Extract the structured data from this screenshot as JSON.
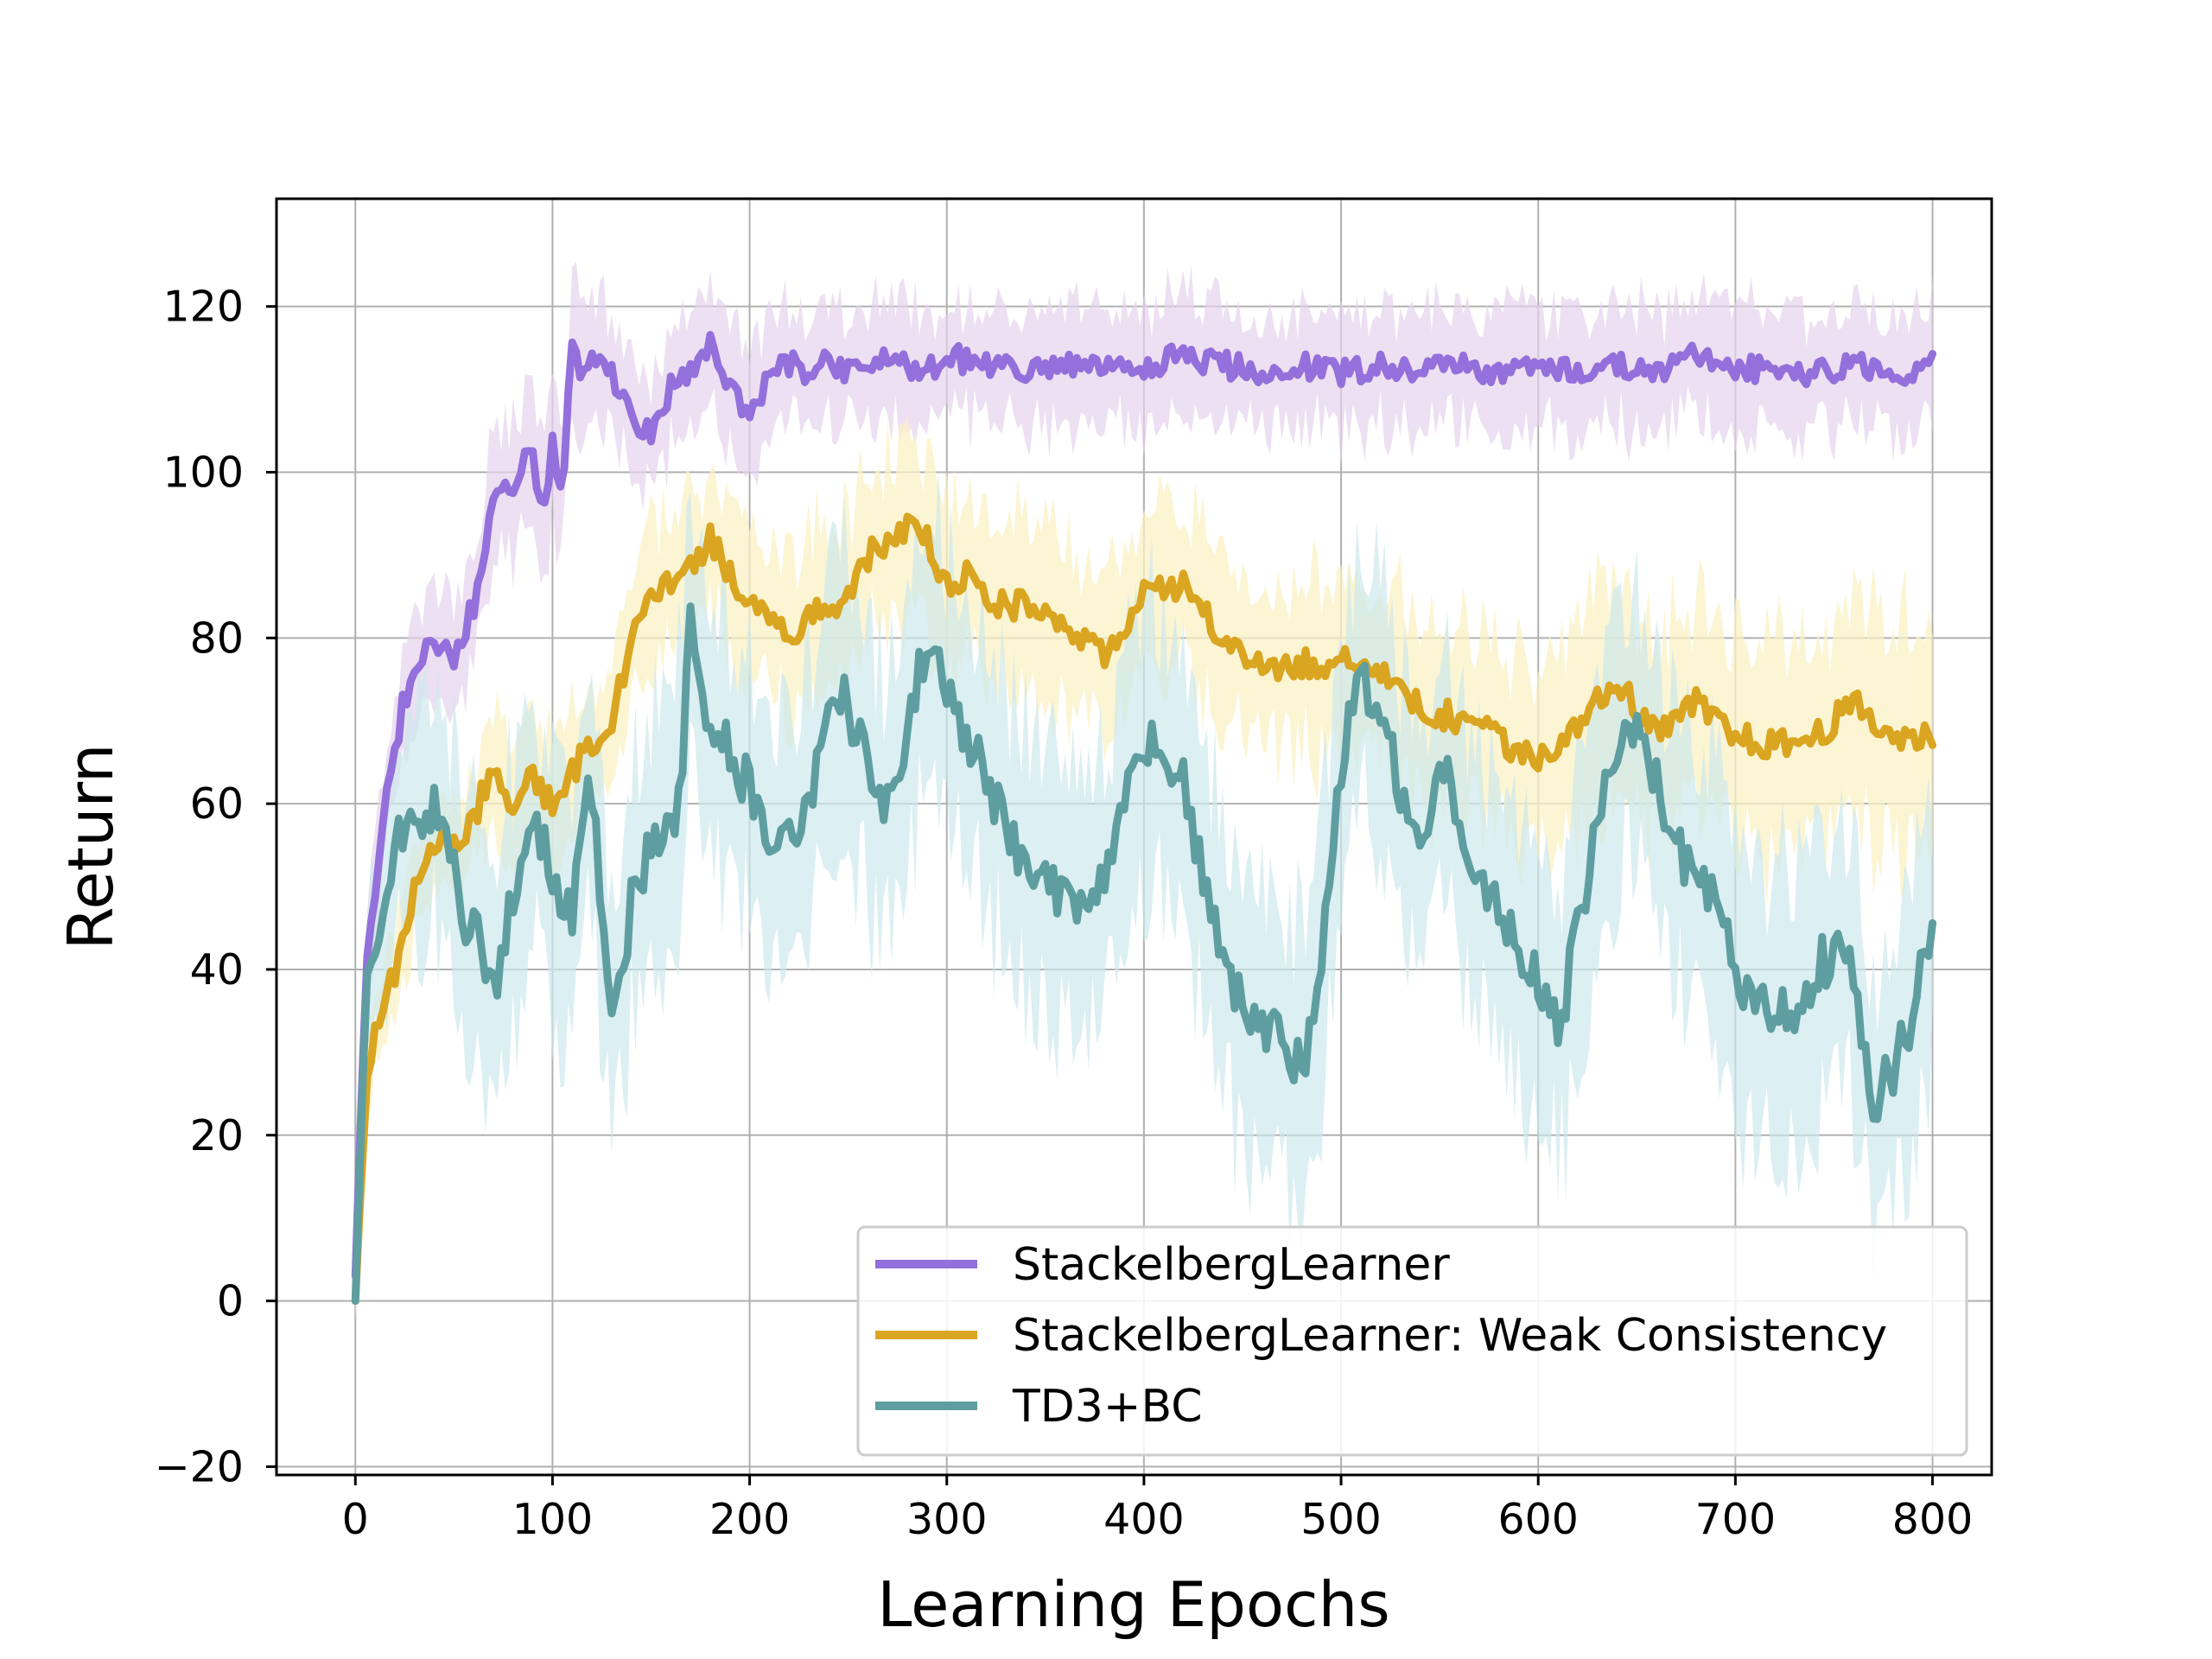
{
  "chart_data": {
    "type": "line",
    "title": "",
    "xlabel": "Learning Epochs",
    "ylabel": "Return",
    "xlim": [
      -40,
      830
    ],
    "ylim": [
      -21,
      133
    ],
    "xticks": [
      0,
      100,
      200,
      300,
      400,
      500,
      600,
      700,
      800
    ],
    "yticks": [
      -20,
      0,
      20,
      40,
      60,
      80,
      100,
      120
    ],
    "xtick_labels": [
      "0",
      "100",
      "200",
      "300",
      "400",
      "500",
      "600",
      "700",
      "800"
    ],
    "ytick_labels": [
      "−20",
      "0",
      "20",
      "40",
      "60",
      "80",
      "100",
      "120"
    ],
    "grid": true,
    "legend_position": "lower-right",
    "series": [
      {
        "name": "StackelbergLearner",
        "color": "#9370DB",
        "band_color": "#E6D3EC",
        "x": [
          0,
          5,
          10,
          15,
          20,
          25,
          30,
          40,
          50,
          60,
          70,
          80,
          90,
          95,
          100,
          105,
          110,
          115,
          120,
          130,
          140,
          150,
          160,
          170,
          180,
          190,
          200,
          210,
          220,
          230,
          240,
          250,
          260,
          270,
          280,
          290,
          300,
          320,
          340,
          360,
          380,
          400,
          420,
          440,
          460,
          480,
          500,
          520,
          540,
          560,
          580,
          600,
          620,
          640,
          660,
          680,
          700,
          720,
          740,
          760,
          780,
          800
        ],
        "y": [
          3,
          38,
          50,
          60,
          66,
          73,
          75,
          80,
          78,
          84,
          96,
          98,
          103,
          93,
          104,
          97,
          116,
          110,
          115,
          112,
          106,
          105,
          110,
          112,
          115,
          111,
          106,
          112,
          113,
          112,
          114,
          112,
          113,
          114,
          113,
          112,
          114,
          113,
          112,
          113,
          112,
          113,
          114,
          113,
          112,
          113,
          112,
          113,
          112,
          113,
          112,
          113,
          112,
          113,
          112,
          114,
          112,
          113,
          112,
          113,
          112,
          113
        ],
        "band": [
          3,
          6,
          6,
          6,
          6,
          6,
          6,
          6,
          7,
          7,
          8,
          8,
          8,
          8,
          8,
          8,
          8,
          8,
          8,
          7,
          7,
          7,
          7,
          7,
          7,
          7,
          7,
          7,
          7,
          7,
          7,
          7,
          7,
          7,
          7,
          7,
          7,
          7,
          7,
          7,
          7,
          7,
          7,
          7,
          7,
          7,
          7,
          7,
          7,
          7,
          7,
          7,
          7,
          7,
          7,
          7,
          7,
          7,
          7,
          7,
          7,
          7
        ]
      },
      {
        "name": "StackelbergLearner: Weak Consistency",
        "color": "#DAA520",
        "band_color": "#FBF1C4",
        "x": [
          0,
          5,
          10,
          20,
          30,
          40,
          50,
          60,
          70,
          80,
          90,
          100,
          110,
          120,
          130,
          140,
          150,
          160,
          170,
          180,
          190,
          200,
          210,
          220,
          230,
          240,
          250,
          260,
          270,
          280,
          290,
          300,
          310,
          320,
          340,
          360,
          380,
          400,
          420,
          440,
          460,
          480,
          500,
          520,
          540,
          560,
          580,
          600,
          620,
          640,
          660,
          680,
          700,
          720,
          740,
          760,
          780,
          800
        ],
        "y": [
          0,
          25,
          32,
          40,
          50,
          55,
          55,
          58,
          65,
          60,
          63,
          60,
          64,
          67,
          70,
          80,
          85,
          87,
          88,
          92,
          88,
          84,
          83,
          80,
          82,
          84,
          85,
          90,
          92,
          93,
          92,
          86,
          88,
          84,
          84,
          82,
          78,
          85,
          86,
          80,
          76,
          77,
          77,
          76,
          72,
          70,
          68,
          65,
          70,
          75,
          68,
          72,
          68,
          67,
          68,
          72,
          68,
          68
        ],
        "band": [
          2,
          5,
          5,
          5,
          6,
          6,
          6,
          6,
          7,
          7,
          7,
          7,
          7,
          7,
          8,
          8,
          8,
          8,
          8,
          8,
          9,
          9,
          9,
          9,
          10,
          10,
          10,
          10,
          10,
          10,
          10,
          10,
          10,
          10,
          10,
          10,
          10,
          10,
          10,
          10,
          10,
          10,
          11,
          11,
          11,
          11,
          12,
          12,
          12,
          12,
          12,
          12,
          13,
          13,
          13,
          14,
          14,
          14
        ]
      },
      {
        "name": "TD3+BC",
        "color": "#5F9EA0",
        "band_color": "#CDE8EC",
        "x": [
          0,
          5,
          10,
          20,
          30,
          40,
          50,
          55,
          60,
          65,
          70,
          80,
          90,
          100,
          110,
          115,
          120,
          130,
          135,
          140,
          150,
          160,
          165,
          170,
          175,
          180,
          190,
          200,
          210,
          220,
          230,
          240,
          250,
          260,
          270,
          280,
          290,
          300,
          310,
          320,
          330,
          340,
          350,
          360,
          370,
          380,
          390,
          400,
          410,
          420,
          430,
          440,
          450,
          460,
          470,
          480,
          490,
          500,
          510,
          520,
          530,
          540,
          550,
          560,
          570,
          580,
          590,
          600,
          610,
          620,
          630,
          640,
          650,
          660,
          670,
          680,
          690,
          700,
          710,
          720,
          730,
          740,
          750,
          760,
          770,
          780,
          790,
          800
        ],
        "y": [
          0,
          35,
          42,
          55,
          58,
          60,
          55,
          45,
          48,
          42,
          38,
          48,
          58,
          52,
          45,
          60,
          62,
          35,
          40,
          48,
          55,
          58,
          60,
          85,
          75,
          70,
          66,
          62,
          54,
          55,
          60,
          75,
          72,
          64,
          60,
          68,
          80,
          74,
          68,
          64,
          56,
          53,
          50,
          48,
          46,
          52,
          60,
          67,
          66,
          62,
          52,
          40,
          36,
          33,
          31,
          28,
          40,
          65,
          75,
          72,
          62,
          55,
          66,
          58,
          52,
          48,
          42,
          38,
          32,
          45,
          58,
          65,
          70,
          62,
          56,
          50,
          48,
          40,
          36,
          35,
          34,
          40,
          42,
          40,
          24,
          28,
          35,
          45
        ],
        "band": [
          2,
          8,
          10,
          12,
          14,
          14,
          14,
          14,
          15,
          15,
          15,
          15,
          15,
          15,
          15,
          15,
          15,
          15,
          15,
          15,
          16,
          16,
          16,
          16,
          16,
          16,
          16,
          16,
          16,
          16,
          16,
          16,
          16,
          16,
          16,
          16,
          16,
          16,
          16,
          16,
          16,
          16,
          16,
          16,
          16,
          16,
          16,
          16,
          16,
          16,
          16,
          16,
          16,
          16,
          16,
          16,
          16,
          16,
          16,
          16,
          16,
          16,
          16,
          16,
          16,
          16,
          16,
          16,
          16,
          16,
          16,
          16,
          16,
          16,
          16,
          16,
          16,
          16,
          16,
          16,
          16,
          16,
          16,
          16,
          16,
          16,
          16,
          16
        ]
      }
    ]
  }
}
